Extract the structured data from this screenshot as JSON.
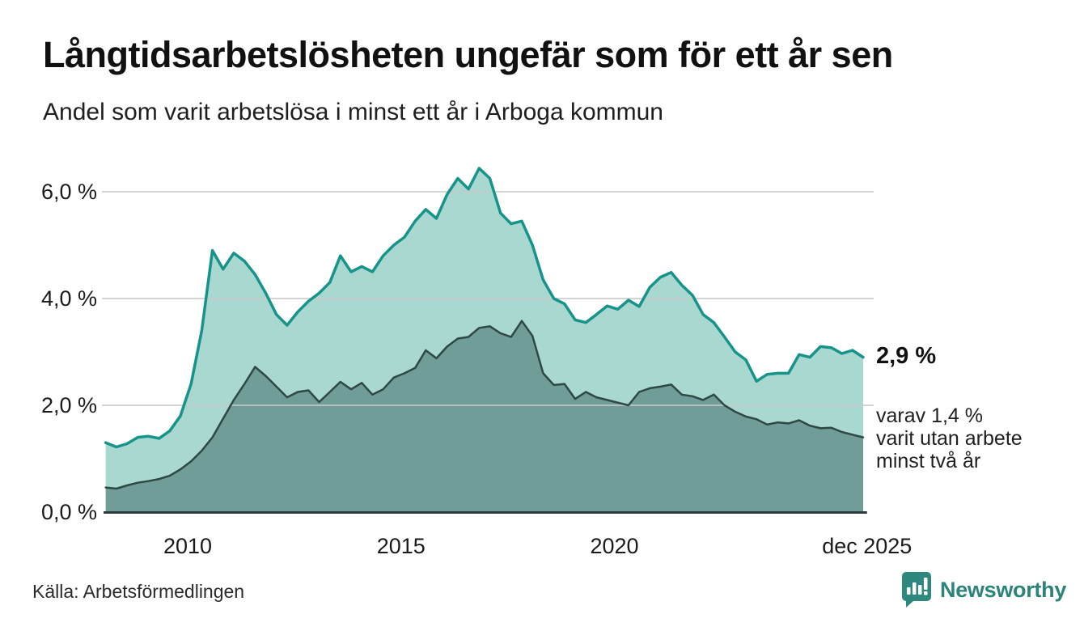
{
  "header": {
    "title": "Långtidsarbetslösheten ungefär som för ett år sen",
    "subtitle": "Andel som varit arbetslösa i minst ett år i Arboga kommun"
  },
  "chart_data": {
    "type": "area",
    "title": "Långtidsarbetslösheten ungefär som för ett år sen",
    "subtitle": "Andel som varit arbetslösa i minst ett år i Arboga kommun",
    "x_start": 2008.08,
    "x_step": 0.25,
    "x_end": 2025.92,
    "x_axis": {
      "ticks": [
        {
          "label": "2010",
          "value": 2010
        },
        {
          "label": "2015",
          "value": 2015
        },
        {
          "label": "2020",
          "value": 2020
        },
        {
          "label": "dec 2025",
          "value": 2025.92
        }
      ]
    },
    "y_axis": {
      "unit": "%",
      "range": [
        0,
        6.6
      ],
      "ticks": [
        {
          "label": "0,0 %",
          "value": 0
        },
        {
          "label": "2,0 %",
          "value": 2
        },
        {
          "label": "4,0 %",
          "value": 4
        },
        {
          "label": "6,0 %",
          "value": 6
        }
      ],
      "gridline_values": [
        2,
        4,
        6
      ]
    },
    "series": [
      {
        "name": "Andel arbetslösa minst ett år",
        "line_color": "#17948a",
        "fill_color": "#a9d8d1",
        "line_width": 3.5,
        "latest_value": 2.9,
        "values": [
          1.3,
          1.22,
          1.28,
          1.4,
          1.42,
          1.38,
          1.52,
          1.8,
          2.4,
          3.4,
          4.9,
          4.55,
          4.85,
          4.7,
          4.45,
          4.1,
          3.7,
          3.5,
          3.75,
          3.95,
          4.1,
          4.3,
          4.8,
          4.5,
          4.6,
          4.5,
          4.8,
          5.0,
          5.15,
          5.45,
          5.67,
          5.5,
          5.95,
          6.25,
          6.05,
          6.44,
          6.25,
          5.6,
          5.4,
          5.45,
          5.0,
          4.35,
          4.0,
          3.9,
          3.6,
          3.55,
          3.7,
          3.86,
          3.8,
          3.97,
          3.85,
          4.21,
          4.4,
          4.49,
          4.25,
          4.06,
          3.7,
          3.55,
          3.28,
          3.0,
          2.85,
          2.45,
          2.58,
          2.6,
          2.6,
          2.95,
          2.9,
          3.1,
          3.08,
          2.97,
          3.03,
          2.9
        ]
      },
      {
        "name": "Andel arbetslösa minst två år",
        "line_color": "#2e4844",
        "fill_color": "#709d97",
        "line_width": 2.5,
        "latest_value": 1.4,
        "values": [
          0.46,
          0.44,
          0.5,
          0.55,
          0.58,
          0.62,
          0.68,
          0.8,
          0.95,
          1.15,
          1.4,
          1.75,
          2.1,
          2.4,
          2.72,
          2.55,
          2.35,
          2.15,
          2.25,
          2.28,
          2.06,
          2.25,
          2.44,
          2.3,
          2.42,
          2.2,
          2.3,
          2.52,
          2.6,
          2.7,
          3.03,
          2.88,
          3.1,
          3.25,
          3.28,
          3.45,
          3.48,
          3.35,
          3.28,
          3.58,
          3.3,
          2.6,
          2.38,
          2.4,
          2.12,
          2.25,
          2.15,
          2.1,
          2.05,
          2.0,
          2.25,
          2.32,
          2.35,
          2.39,
          2.2,
          2.17,
          2.1,
          2.2,
          2.0,
          1.88,
          1.79,
          1.74,
          1.64,
          1.68,
          1.66,
          1.72,
          1.62,
          1.57,
          1.58,
          1.5,
          1.45,
          1.4
        ]
      }
    ],
    "gridline_color": "#d9d9d9",
    "baseline_color": "#2d3c3a",
    "legend": "none"
  },
  "annotations": {
    "latest_value": "2,9 %",
    "secondary_line1": "varav 1,4 %",
    "secondary_line2": "varit utan arbete",
    "secondary_line3": "minst två år"
  },
  "footer": {
    "source": "Källa: Arbetsförmedlingen",
    "brand": "Newsworthy",
    "brand_color": "#2c8478"
  }
}
